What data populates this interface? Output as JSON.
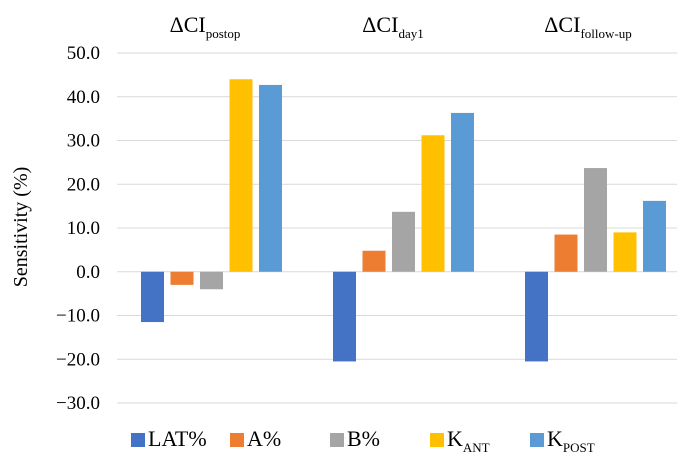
{
  "chart_data": {
    "type": "bar",
    "categories": [
      {
        "prefix": "ΔCI",
        "sub": "postop"
      },
      {
        "prefix": "ΔCI",
        "sub": "day1"
      },
      {
        "prefix": "ΔCI",
        "sub": "follow-up"
      }
    ],
    "series": [
      {
        "name": "LAT%",
        "name_main": "LAT%",
        "name_sub": "",
        "color": "#4472C4",
        "values": [
          -11.5,
          -20.5,
          -20.5
        ]
      },
      {
        "name": "A%",
        "name_main": "A%",
        "name_sub": "",
        "color": "#ED7D31",
        "values": [
          -3.0,
          4.8,
          8.5
        ]
      },
      {
        "name": "B%",
        "name_main": "B%",
        "name_sub": "",
        "color": "#A5A5A5",
        "values": [
          -4.0,
          13.7,
          23.7
        ]
      },
      {
        "name": "K_ANT",
        "name_main": "K",
        "name_sub": "ANT",
        "color": "#FFC000",
        "values": [
          44.0,
          31.2,
          9.0
        ]
      },
      {
        "name": "K_POST",
        "name_main": "K",
        "name_sub": "POST",
        "color": "#5B9BD5",
        "values": [
          42.7,
          36.3,
          16.2
        ]
      }
    ],
    "ylabel": "Sensitivity (%)",
    "xlabel": "",
    "ylim": [
      -30,
      50
    ],
    "yticks": [
      50,
      40,
      30,
      20,
      10,
      0,
      -10,
      -20,
      -30
    ],
    "ytick_labels": [
      "50.0",
      "40.0",
      "30.0",
      "20.0",
      "10.0",
      "0.0",
      "−10.0",
      "−20.0",
      "−30.0"
    ],
    "grid": true,
    "legend_position": "bottom",
    "category_labels_position": "top"
  }
}
